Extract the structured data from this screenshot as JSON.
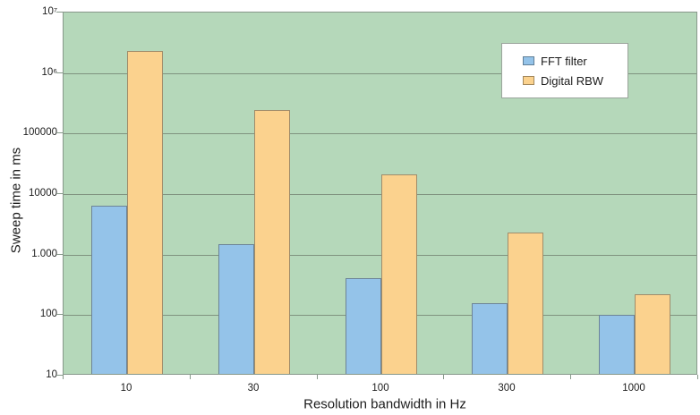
{
  "chart_data": {
    "type": "bar",
    "title": "",
    "xlabel": "Resolution bandwidth in Hz",
    "ylabel": "Sweep time in ms",
    "categories": [
      "10",
      "30",
      "100",
      "300",
      "1000"
    ],
    "series": [
      {
        "name": "FFT filter",
        "color": "#94c3e9",
        "values": [
          6000,
          1400,
          380,
          145,
          95
        ]
      },
      {
        "name": "Digital RBW",
        "color": "#fbd28e",
        "values": [
          2200000,
          230000,
          20000,
          2200,
          210
        ]
      }
    ],
    "y_scale": "log",
    "ylim": [
      10,
      10000000
    ],
    "y_tick_labels": [
      "10⁷",
      "10⁶",
      "100000",
      "10000",
      "1.000",
      "100",
      "10"
    ],
    "x_tick_labels": [
      "10",
      "30",
      "100",
      "300",
      "1000"
    ],
    "grid": true,
    "legend_position": "upper-right-inside",
    "plot_bg": "#b5d8ba",
    "units": "ms"
  }
}
